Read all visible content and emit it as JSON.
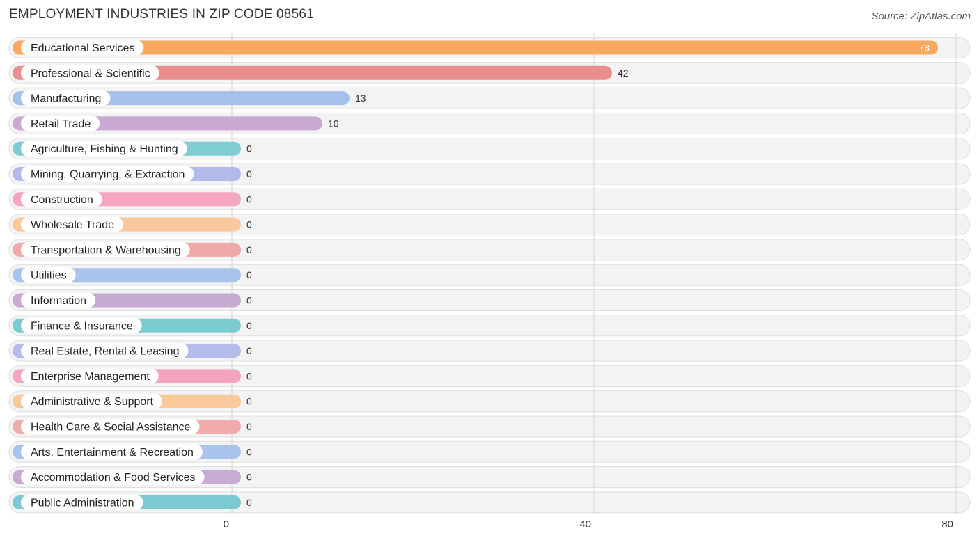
{
  "title": "EMPLOYMENT INDUSTRIES IN ZIP CODE 08561",
  "source": "Source: ZipAtlas.com",
  "chart_data": {
    "type": "bar",
    "orientation": "horizontal",
    "categories": [
      "Educational Services",
      "Professional & Scientific",
      "Manufacturing",
      "Retail Trade",
      "Agriculture, Fishing & Hunting",
      "Mining, Quarrying, & Extraction",
      "Construction",
      "Wholesale Trade",
      "Transportation & Warehousing",
      "Utilities",
      "Information",
      "Finance & Insurance",
      "Real Estate, Rental & Leasing",
      "Enterprise Management",
      "Administrative & Support",
      "Health Care & Social Assistance",
      "Arts, Entertainment & Recreation",
      "Accommodation & Food Services",
      "Public Administration"
    ],
    "values": [
      78,
      42,
      13,
      10,
      0,
      0,
      0,
      0,
      0,
      0,
      0,
      0,
      0,
      0,
      0,
      0,
      0,
      0,
      0
    ],
    "value_labels": [
      "78",
      "42",
      "13",
      "10",
      "0",
      "0",
      "0",
      "0",
      "0",
      "0",
      "0",
      "0",
      "0",
      "0",
      "0",
      "0",
      "0",
      "0",
      "0"
    ],
    "colors": [
      "#f8a85e",
      "#ea8d8d",
      "#a3c1ea",
      "#c9a9d1",
      "#7fccd3",
      "#b3b9ea",
      "#f6a5c0",
      "#f9c99d",
      "#efaaa8",
      "#a9c4ec",
      "#c6aad2",
      "#7ccbd1",
      "#b5bbeb",
      "#f5a4bf",
      "#f9c89b",
      "#f0acaa",
      "#a9c4ec",
      "#c8abd2",
      "#7ccad1"
    ],
    "xticks": [
      "0",
      "40",
      "80"
    ],
    "xlim": [
      0,
      80
    ],
    "grid": true
  }
}
